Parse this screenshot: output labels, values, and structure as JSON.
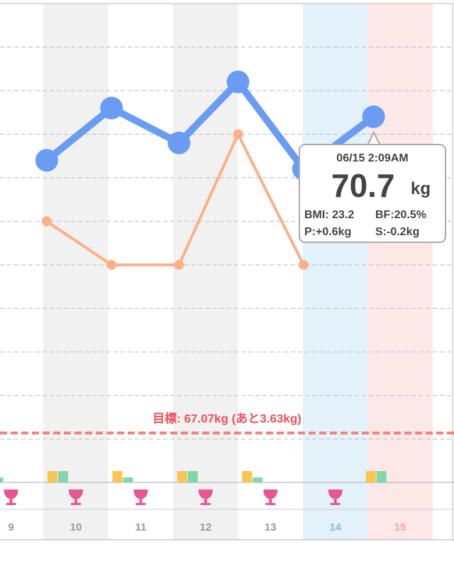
{
  "chart_data": {
    "type": "line",
    "days": [
      9,
      10,
      11,
      12,
      13,
      14,
      15
    ],
    "xlim": [
      9.33,
      16.33
    ],
    "ylim": [
      66.6,
      72.0
    ],
    "yticks": [
      67.0,
      67.5,
      68.0,
      68.5,
      69.0,
      69.5,
      70.0,
      70.5,
      71.0,
      71.5
    ],
    "grid": true,
    "series": [
      {
        "color": "#6b9cf3",
        "x": [
          10.05,
          11.05,
          12.09,
          13.0,
          14.01,
          15.09
        ],
        "values": [
          70.2,
          70.8,
          70.4,
          71.1,
          70.1,
          70.7
        ]
      },
      {
        "color": "#fbb08a",
        "x": [
          10.05,
          11.05,
          12.09,
          13.0,
          14.01,
          15.09
        ],
        "values": [
          69.5,
          69.0,
          69.0,
          70.5,
          69.0,
          null
        ]
      }
    ],
    "goal": {
      "value": 67.07,
      "label": "目標: 67.07kg (あと3.63kg)"
    },
    "tooltip": {
      "date": "06/15 2:09AM",
      "weight": "70.7",
      "unit": "kg",
      "bmi": "BMI: 23.2",
      "bf": "BF:20.5%",
      "p": "P:+0.6kg",
      "s": "S:-0.2kg"
    }
  }
}
